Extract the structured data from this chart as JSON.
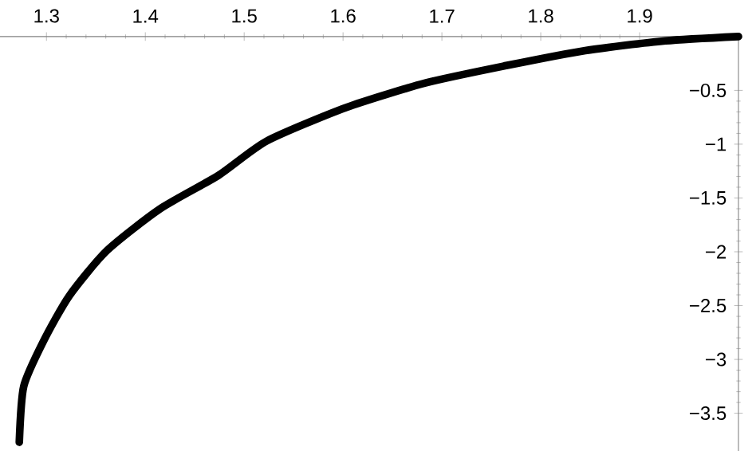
{
  "chart_data": {
    "type": "line",
    "xlim": [
      1.253,
      2
    ],
    "ylim": [
      -3.85,
      0
    ],
    "xticks": [
      1.3,
      1.4,
      1.5,
      1.6,
      1.7,
      1.8,
      1.9
    ],
    "yticks": [
      {
        "value": -0.5,
        "label": "−0.5"
      },
      {
        "value": -1,
        "label": "−1"
      },
      {
        "value": -1.5,
        "label": "−1.5"
      },
      {
        "value": -2,
        "label": "−2"
      },
      {
        "value": -2.5,
        "label": "−2.5"
      },
      {
        "value": -3,
        "label": "−3"
      },
      {
        "value": -3.5,
        "label": "−3.5"
      }
    ],
    "series": [
      {
        "color": "#000000",
        "x": [
          1.2725,
          1.277,
          1.297,
          1.323,
          1.361,
          1.415,
          1.474,
          1.523,
          1.603,
          1.684,
          1.765,
          1.845,
          1.926,
          2.0
        ],
        "values": [
          -3.77,
          -3.25,
          -2.83,
          -2.41,
          -1.99,
          -1.6,
          -1.29,
          -0.97,
          -0.66,
          -0.43,
          -0.27,
          -0.13,
          -0.04,
          0
        ]
      }
    ]
  }
}
